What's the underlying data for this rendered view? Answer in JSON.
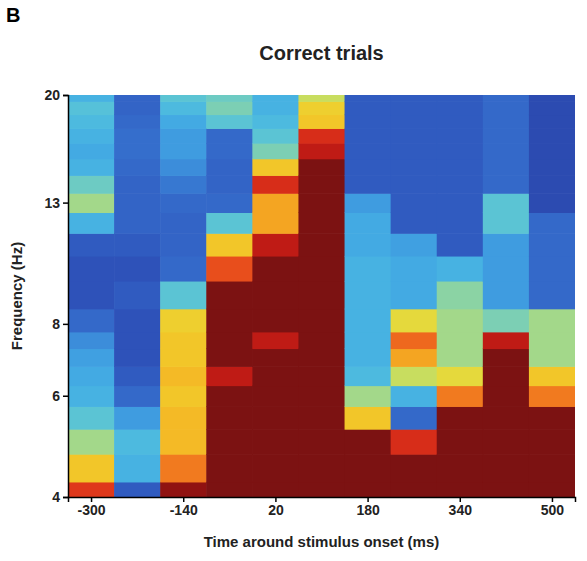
{
  "chart_data": {
    "type": "heatmap",
    "panel_label": "B",
    "title": "Correct trials",
    "x_label": "Time around stimulus onset (ms)",
    "y_label": "Frequency (Hz)",
    "x": [
      -300,
      -220,
      -140,
      -60,
      20,
      100,
      180,
      260,
      340,
      420,
      500
    ],
    "x_bin_width": 80,
    "y_edges": [
      4,
      4.25,
      4.75,
      5.25,
      5.75,
      6.25,
      6.75,
      7.25,
      7.75,
      8.5,
      9.5,
      10.5,
      11.5,
      12.5,
      13.5,
      14.5,
      15.5,
      16.5,
      17.5,
      18.5,
      19.5,
      20
    ],
    "xlim": [
      -340,
      540
    ],
    "ylim": [
      4,
      20
    ],
    "xticks": [
      -300,
      -140,
      20,
      180,
      340,
      500
    ],
    "yticks": [
      4,
      6,
      8,
      13,
      20
    ],
    "log": "y",
    "zlim": [
      0,
      1
    ],
    "z": [
      [
        0.78,
        0.6,
        0.45,
        0.35,
        0.3,
        0.28,
        0.26,
        0.22,
        0.15,
        0.1,
        0.1,
        0.12,
        0.3,
        0.45,
        0.38,
        0.3,
        0.28,
        0.3,
        0.32,
        0.34,
        0.3
      ],
      [
        0.12,
        0.3,
        0.32,
        0.25,
        0.15,
        0.12,
        0.1,
        0.1,
        0.1,
        0.12,
        0.1,
        0.12,
        0.14,
        0.14,
        0.14,
        0.15,
        0.16,
        0.16,
        0.15,
        0.14,
        0.14
      ],
      [
        0.95,
        0.7,
        0.62,
        0.62,
        0.6,
        0.62,
        0.6,
        0.6,
        0.58,
        0.35,
        0.15,
        0.14,
        0.14,
        0.15,
        0.18,
        0.22,
        0.25,
        0.25,
        0.28,
        0.32,
        0.35
      ],
      [
        1,
        1,
        1,
        1,
        1,
        0.85,
        1,
        1,
        1,
        1,
        0.75,
        0.6,
        0.35,
        0.15,
        0.14,
        0.14,
        0.15,
        0.15,
        0.35,
        0.4,
        0.38
      ],
      [
        1,
        1,
        1,
        1,
        1,
        1,
        1,
        0.85,
        1,
        1,
        1,
        0.85,
        0.65,
        0.65,
        0.8,
        0.6,
        0.4,
        0.35,
        0.32,
        0.3,
        0.3
      ],
      [
        1,
        1,
        1,
        1,
        1,
        1,
        1,
        1,
        1,
        1,
        1,
        1,
        1,
        1,
        1,
        1,
        0.85,
        0.8,
        0.6,
        0.58,
        0.5
      ],
      [
        1,
        1,
        1,
        0.6,
        0.45,
        0.32,
        0.3,
        0.3,
        0.3,
        0.3,
        0.3,
        0.28,
        0.28,
        0.25,
        0.12,
        0.12,
        0.12,
        0.12,
        0.12,
        0.12,
        0.12
      ],
      [
        1,
        1,
        0.8,
        0.15,
        0.3,
        0.5,
        0.65,
        0.72,
        0.55,
        0.28,
        0.28,
        0.26,
        0.12,
        0.12,
        0.12,
        0.12,
        0.12,
        0.12,
        0.12,
        0.12,
        0.12
      ],
      [
        1,
        1,
        1,
        1,
        0.7,
        0.55,
        0.45,
        0.45,
        0.45,
        0.42,
        0.3,
        0.12,
        0.12,
        0.12,
        0.12,
        0.12,
        0.12,
        0.12,
        0.12,
        0.12,
        0.12
      ],
      [
        1,
        1,
        1,
        1,
        1,
        1,
        1,
        0.85,
        0.4,
        0.25,
        0.25,
        0.25,
        0.35,
        0.35,
        0.15,
        0.15,
        0.15,
        0.15,
        0.15,
        0.15,
        0.15
      ],
      [
        1,
        1,
        1,
        1,
        0.7,
        0.6,
        0.45,
        0.45,
        0.45,
        0.15,
        0.15,
        0.15,
        0.15,
        0.08,
        0.08,
        0.08,
        0.08,
        0.08,
        0.08,
        0.08,
        0.08
      ]
    ]
  }
}
